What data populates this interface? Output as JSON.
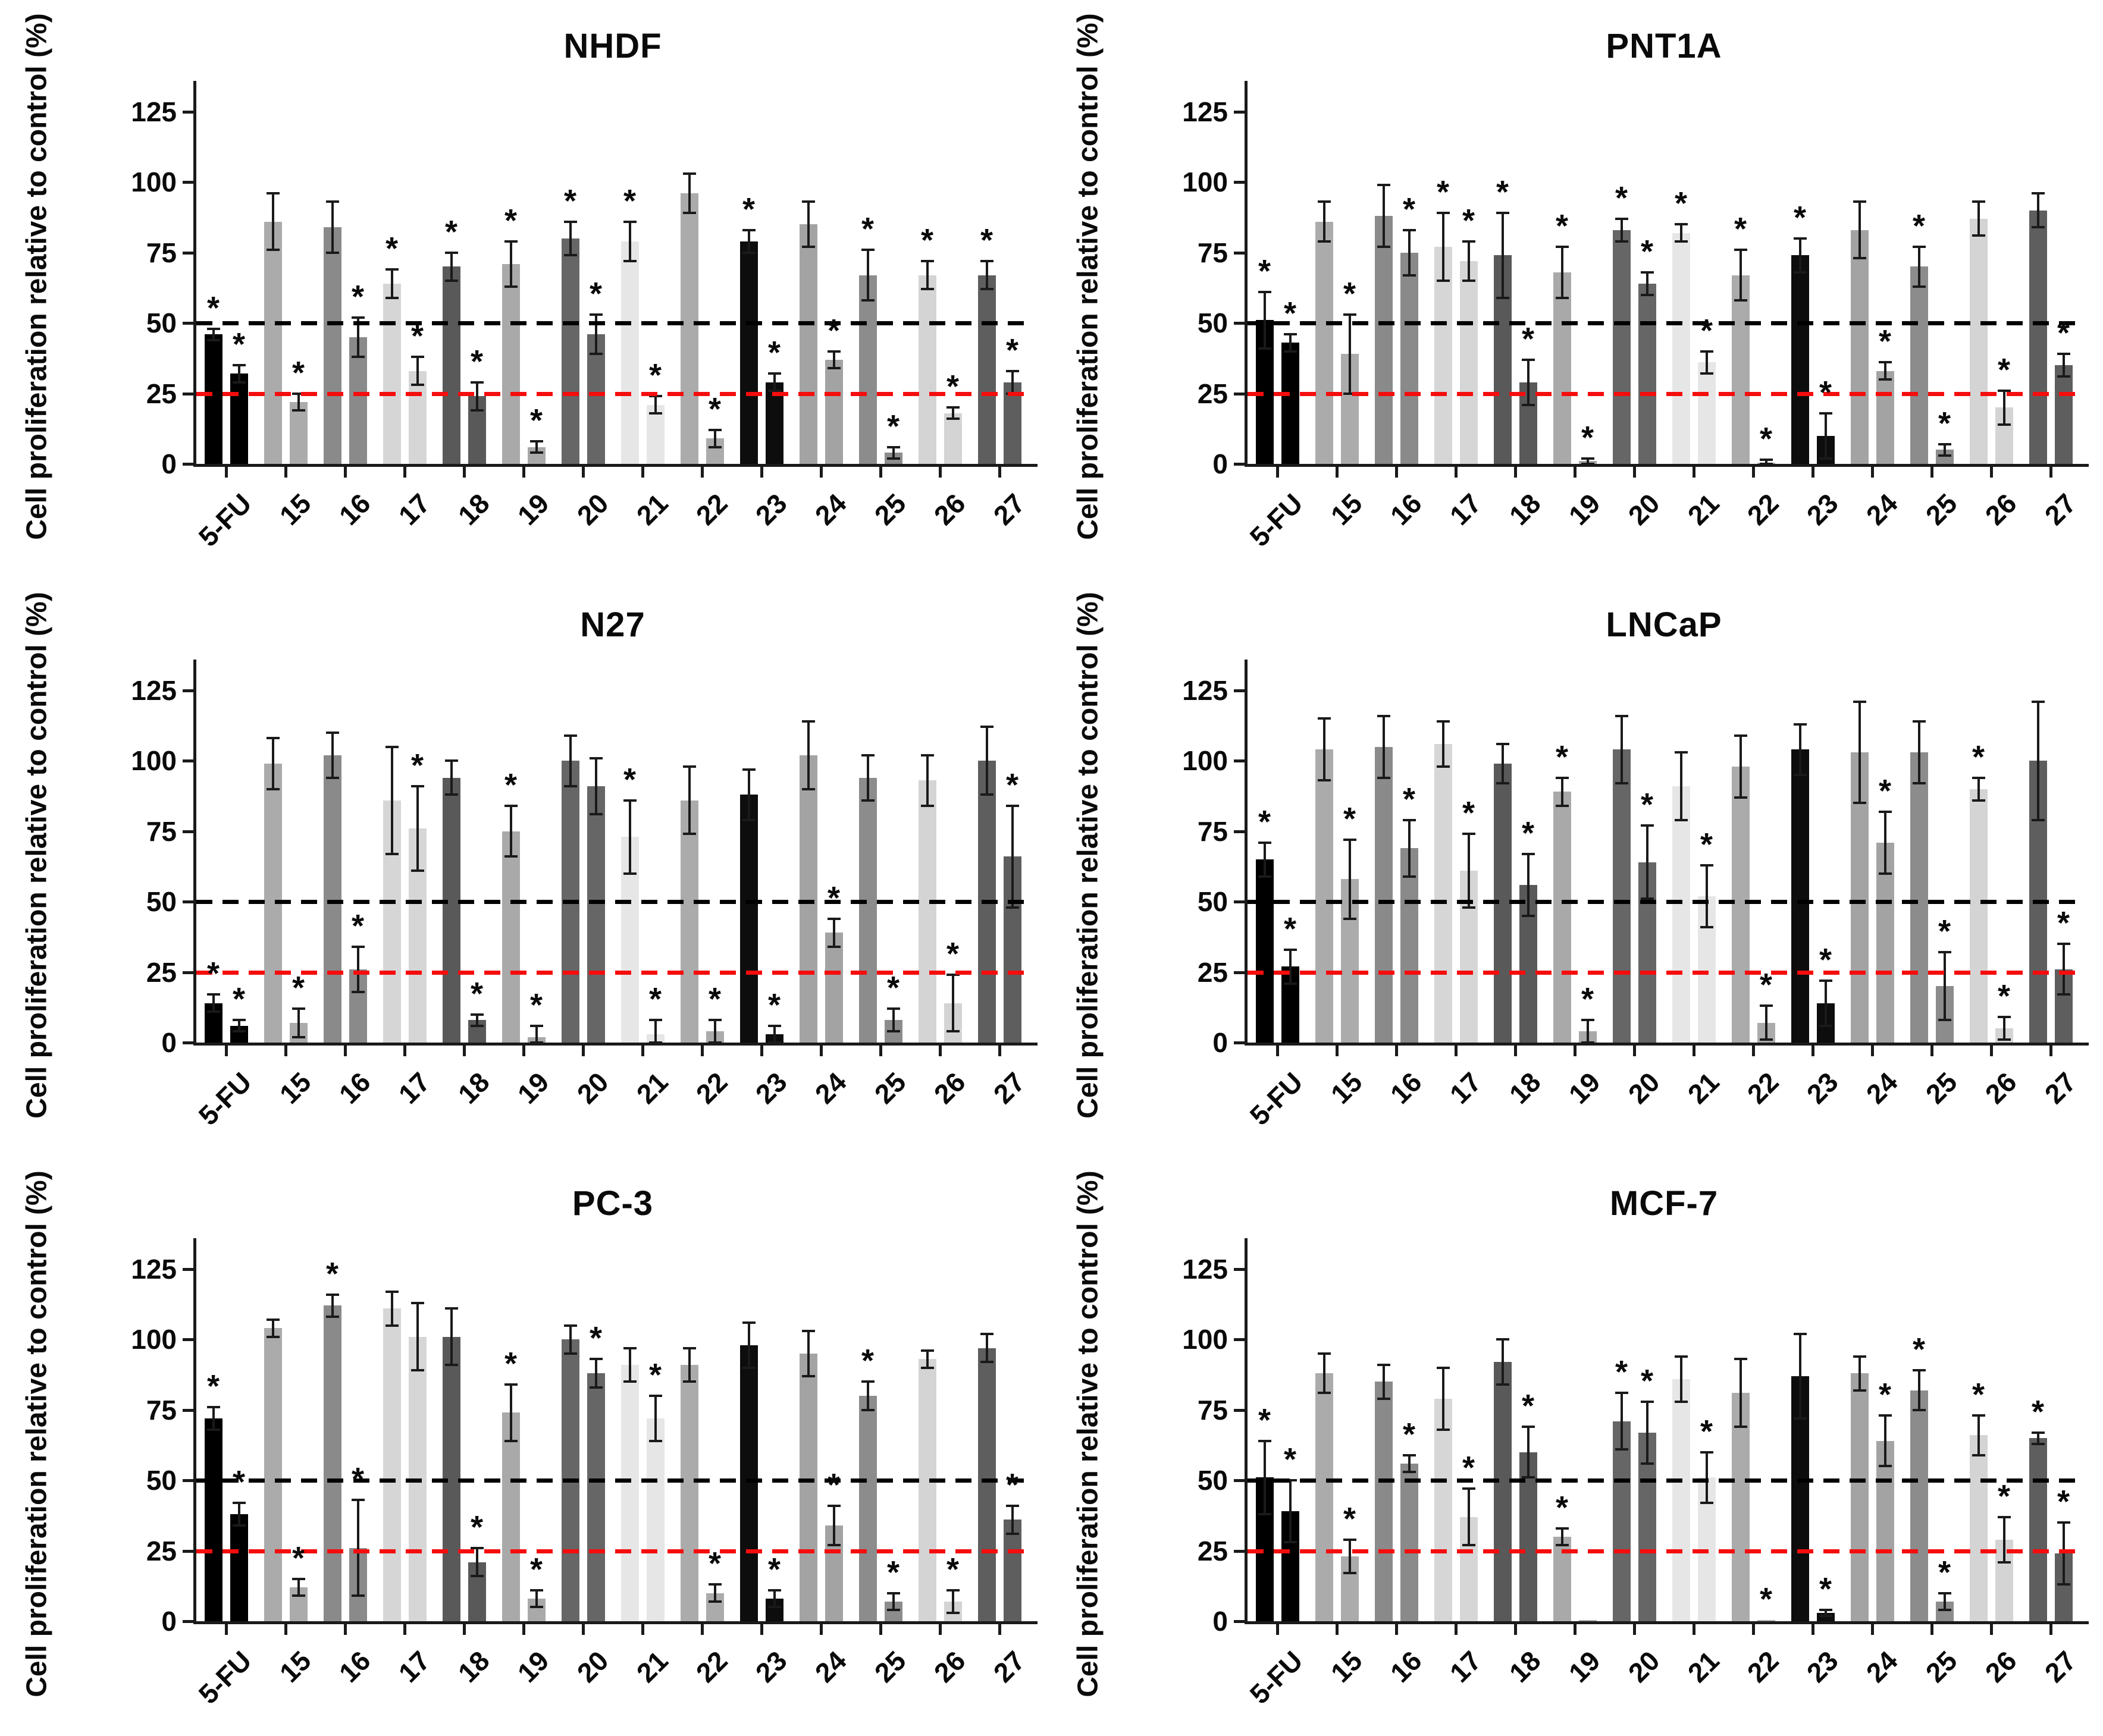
{
  "figure": {
    "ylabel": "Cell proliferation relative to control (%)",
    "yticks": [
      0,
      25,
      50,
      75,
      100,
      125
    ],
    "ref_lines": [
      {
        "y": 50,
        "color": "#000000",
        "style": "dashed"
      },
      {
        "y": 25,
        "color": "#f50d0d",
        "style": "dashed"
      }
    ],
    "significance_marker": "*"
  },
  "chart_data": [
    {
      "type": "bar",
      "title": "NHDF",
      "ylabel": "Cell proliferation relative to control (%)",
      "ylim": [
        0,
        125
      ],
      "legend": "none",
      "grid": false,
      "categories": [
        "5-FU",
        "15",
        "16",
        "17",
        "18",
        "19",
        "20",
        "21",
        "22",
        "23",
        "24",
        "25",
        "26",
        "27"
      ],
      "colors": [
        "#000000",
        "#ababab",
        "#8a8a8a",
        "#d6d6d6",
        "#595959",
        "#a9a9a9",
        "#666666",
        "#e6e6e6",
        "#ababab",
        "#0d0d0d",
        "#a3a3a3",
        "#8c8c8c",
        "#d4d4d4",
        "#5e5e5e"
      ],
      "series": [
        {
          "name": "left-bar",
          "values": [
            46,
            86,
            84,
            64,
            70,
            71,
            80,
            79,
            96,
            79,
            85,
            67,
            67,
            67
          ],
          "errors": [
            2,
            10,
            9,
            5,
            5,
            8,
            6,
            7,
            7,
            4,
            8,
            9,
            5,
            5
          ],
          "sig": [
            1,
            0,
            0,
            1,
            1,
            1,
            1,
            1,
            0,
            1,
            0,
            1,
            1,
            1
          ]
        },
        {
          "name": "right-bar",
          "values": [
            32,
            22,
            45,
            33,
            24,
            6,
            46,
            21,
            9,
            29,
            37,
            4,
            18,
            29
          ],
          "errors": [
            3,
            3,
            7,
            5,
            5,
            2,
            7,
            3,
            3,
            3,
            3,
            2,
            2,
            4
          ],
          "sig": [
            1,
            1,
            1,
            1,
            1,
            1,
            1,
            1,
            1,
            1,
            1,
            1,
            1,
            1
          ]
        }
      ]
    },
    {
      "type": "bar",
      "title": "PNT1A",
      "ylabel": "Cell proliferation relative to control (%)",
      "ylim": [
        0,
        125
      ],
      "legend": "none",
      "grid": false,
      "categories": [
        "5-FU",
        "15",
        "16",
        "17",
        "18",
        "19",
        "20",
        "21",
        "22",
        "23",
        "24",
        "25",
        "26",
        "27"
      ],
      "colors": [
        "#000000",
        "#ababab",
        "#8a8a8a",
        "#d6d6d6",
        "#595959",
        "#a9a9a9",
        "#666666",
        "#e6e6e6",
        "#ababab",
        "#0d0d0d",
        "#a3a3a3",
        "#8c8c8c",
        "#d4d4d4",
        "#5e5e5e"
      ],
      "series": [
        {
          "name": "left-bar",
          "values": [
            51,
            86,
            88,
            77,
            74,
            68,
            83,
            82,
            67,
            74,
            83,
            70,
            87,
            90
          ],
          "errors": [
            10,
            7,
            11,
            12,
            15,
            9,
            4,
            3,
            9,
            6,
            10,
            7,
            6,
            6
          ],
          "sig": [
            1,
            0,
            0,
            1,
            1,
            1,
            1,
            1,
            1,
            1,
            0,
            1,
            0,
            0
          ]
        },
        {
          "name": "right-bar",
          "values": [
            43,
            39,
            75,
            72,
            29,
            1,
            64,
            36,
            0.5,
            10,
            33,
            5,
            20,
            35
          ],
          "errors": [
            3,
            14,
            8,
            7,
            8,
            1,
            4,
            4,
            1,
            8,
            3,
            2,
            6,
            4
          ],
          "sig": [
            1,
            1,
            1,
            1,
            1,
            1,
            1,
            1,
            1,
            1,
            1,
            1,
            1,
            1
          ]
        }
      ]
    },
    {
      "type": "bar",
      "title": "N27",
      "ylabel": "Cell proliferation relative to control (%)",
      "ylim": [
        0,
        125
      ],
      "legend": "none",
      "grid": false,
      "categories": [
        "5-FU",
        "15",
        "16",
        "17",
        "18",
        "19",
        "20",
        "21",
        "22",
        "23",
        "24",
        "25",
        "26",
        "27"
      ],
      "colors": [
        "#000000",
        "#ababab",
        "#8a8a8a",
        "#d6d6d6",
        "#595959",
        "#a9a9a9",
        "#666666",
        "#e6e6e6",
        "#ababab",
        "#0d0d0d",
        "#a3a3a3",
        "#8c8c8c",
        "#d4d4d4",
        "#5e5e5e"
      ],
      "series": [
        {
          "name": "left-bar",
          "values": [
            14,
            99,
            102,
            86,
            94,
            75,
            100,
            73,
            86,
            88,
            102,
            94,
            93,
            100
          ],
          "errors": [
            3,
            9,
            8,
            19,
            6,
            9,
            9,
            13,
            12,
            9,
            12,
            8,
            9,
            12
          ],
          "sig": [
            1,
            0,
            0,
            0,
            0,
            1,
            0,
            1,
            0,
            0,
            0,
            0,
            0,
            0
          ]
        },
        {
          "name": "right-bar",
          "values": [
            6,
            7,
            26,
            76,
            8,
            2,
            91,
            3,
            4,
            3,
            39,
            8,
            14,
            66
          ],
          "errors": [
            2,
            5,
            8,
            15,
            2,
            4,
            10,
            5,
            4,
            3,
            5,
            4,
            10,
            18
          ],
          "sig": [
            1,
            1,
            1,
            1,
            1,
            1,
            0,
            1,
            1,
            1,
            1,
            1,
            1,
            1
          ]
        }
      ]
    },
    {
      "type": "bar",
      "title": "LNCaP",
      "ylabel": "Cell proliferation relative to control (%)",
      "ylim": [
        0,
        125
      ],
      "legend": "none",
      "grid": false,
      "categories": [
        "5-FU",
        "15",
        "16",
        "17",
        "18",
        "19",
        "20",
        "21",
        "22",
        "23",
        "24",
        "25",
        "26",
        "27"
      ],
      "colors": [
        "#000000",
        "#ababab",
        "#8a8a8a",
        "#d6d6d6",
        "#595959",
        "#a9a9a9",
        "#666666",
        "#e6e6e6",
        "#ababab",
        "#0d0d0d",
        "#a3a3a3",
        "#8c8c8c",
        "#d4d4d4",
        "#5e5e5e"
      ],
      "series": [
        {
          "name": "left-bar",
          "values": [
            65,
            104,
            105,
            106,
            99,
            89,
            104,
            91,
            98,
            104,
            103,
            103,
            90,
            100
          ],
          "errors": [
            6,
            11,
            11,
            8,
            7,
            5,
            12,
            12,
            11,
            9,
            18,
            11,
            4,
            21
          ],
          "sig": [
            1,
            0,
            0,
            0,
            0,
            1,
            0,
            0,
            0,
            0,
            0,
            0,
            1,
            0
          ]
        },
        {
          "name": "right-bar",
          "values": [
            27,
            58,
            69,
            61,
            56,
            4,
            64,
            52,
            7,
            14,
            71,
            20,
            5,
            26
          ],
          "errors": [
            6,
            14,
            10,
            13,
            11,
            4,
            13,
            11,
            6,
            8,
            11,
            12,
            4,
            9
          ],
          "sig": [
            1,
            1,
            1,
            1,
            1,
            1,
            1,
            1,
            1,
            1,
            1,
            1,
            1,
            1
          ]
        }
      ]
    },
    {
      "type": "bar",
      "title": "PC-3",
      "ylabel": "Cell proliferation relative to control (%)",
      "ylim": [
        0,
        125
      ],
      "legend": "none",
      "grid": false,
      "categories": [
        "5-FU",
        "15",
        "16",
        "17",
        "18",
        "19",
        "20",
        "21",
        "22",
        "23",
        "24",
        "25",
        "26",
        "27"
      ],
      "colors": [
        "#000000",
        "#ababab",
        "#8a8a8a",
        "#d6d6d6",
        "#595959",
        "#a9a9a9",
        "#666666",
        "#e6e6e6",
        "#ababab",
        "#0d0d0d",
        "#a3a3a3",
        "#8c8c8c",
        "#d4d4d4",
        "#5e5e5e"
      ],
      "series": [
        {
          "name": "left-bar",
          "values": [
            72,
            104,
            112,
            111,
            101,
            74,
            100,
            91,
            91,
            98,
            95,
            80,
            93,
            97
          ],
          "errors": [
            4,
            3,
            4,
            6,
            10,
            10,
            5,
            6,
            6,
            8,
            8,
            5,
            3,
            5
          ],
          "sig": [
            1,
            0,
            1,
            0,
            0,
            1,
            0,
            0,
            0,
            0,
            0,
            1,
            0,
            0
          ]
        },
        {
          "name": "right-bar",
          "values": [
            38,
            12,
            26,
            101,
            21,
            8,
            88,
            72,
            10,
            8,
            34,
            7,
            7,
            36
          ],
          "errors": [
            4,
            3,
            17,
            12,
            5,
            3,
            5,
            8,
            3,
            3,
            7,
            3,
            4,
            5
          ],
          "sig": [
            1,
            1,
            1,
            0,
            1,
            1,
            1,
            1,
            1,
            1,
            1,
            1,
            1,
            1
          ]
        }
      ]
    },
    {
      "type": "bar",
      "title": "MCF-7",
      "ylabel": "Cell proliferation relative to control (%)",
      "ylim": [
        0,
        125
      ],
      "legend": "none",
      "grid": false,
      "categories": [
        "5-FU",
        "15",
        "16",
        "17",
        "18",
        "19",
        "20",
        "21",
        "22",
        "23",
        "24",
        "25",
        "26",
        "27"
      ],
      "colors": [
        "#000000",
        "#ababab",
        "#8a8a8a",
        "#d6d6d6",
        "#595959",
        "#a9a9a9",
        "#666666",
        "#e6e6e6",
        "#ababab",
        "#0d0d0d",
        "#a3a3a3",
        "#8c8c8c",
        "#d4d4d4",
        "#5e5e5e"
      ],
      "series": [
        {
          "name": "left-bar",
          "values": [
            51,
            88,
            85,
            79,
            92,
            30,
            71,
            86,
            81,
            87,
            88,
            82,
            66,
            65
          ],
          "errors": [
            13,
            7,
            6,
            11,
            8,
            3,
            10,
            8,
            12,
            15,
            6,
            7,
            7,
            2
          ],
          "sig": [
            1,
            0,
            0,
            0,
            0,
            1,
            1,
            0,
            0,
            0,
            0,
            1,
            1,
            1
          ]
        },
        {
          "name": "right-bar",
          "values": [
            39,
            23,
            56,
            37,
            60,
            0.5,
            67,
            51,
            0.5,
            3,
            64,
            7,
            29,
            24
          ],
          "errors": [
            11,
            6,
            3,
            10,
            9,
            0,
            11,
            9,
            0,
            1,
            9,
            3,
            8,
            11
          ],
          "sig": [
            1,
            1,
            1,
            1,
            1,
            0,
            1,
            1,
            1,
            1,
            1,
            1,
            1,
            1
          ]
        }
      ]
    }
  ]
}
